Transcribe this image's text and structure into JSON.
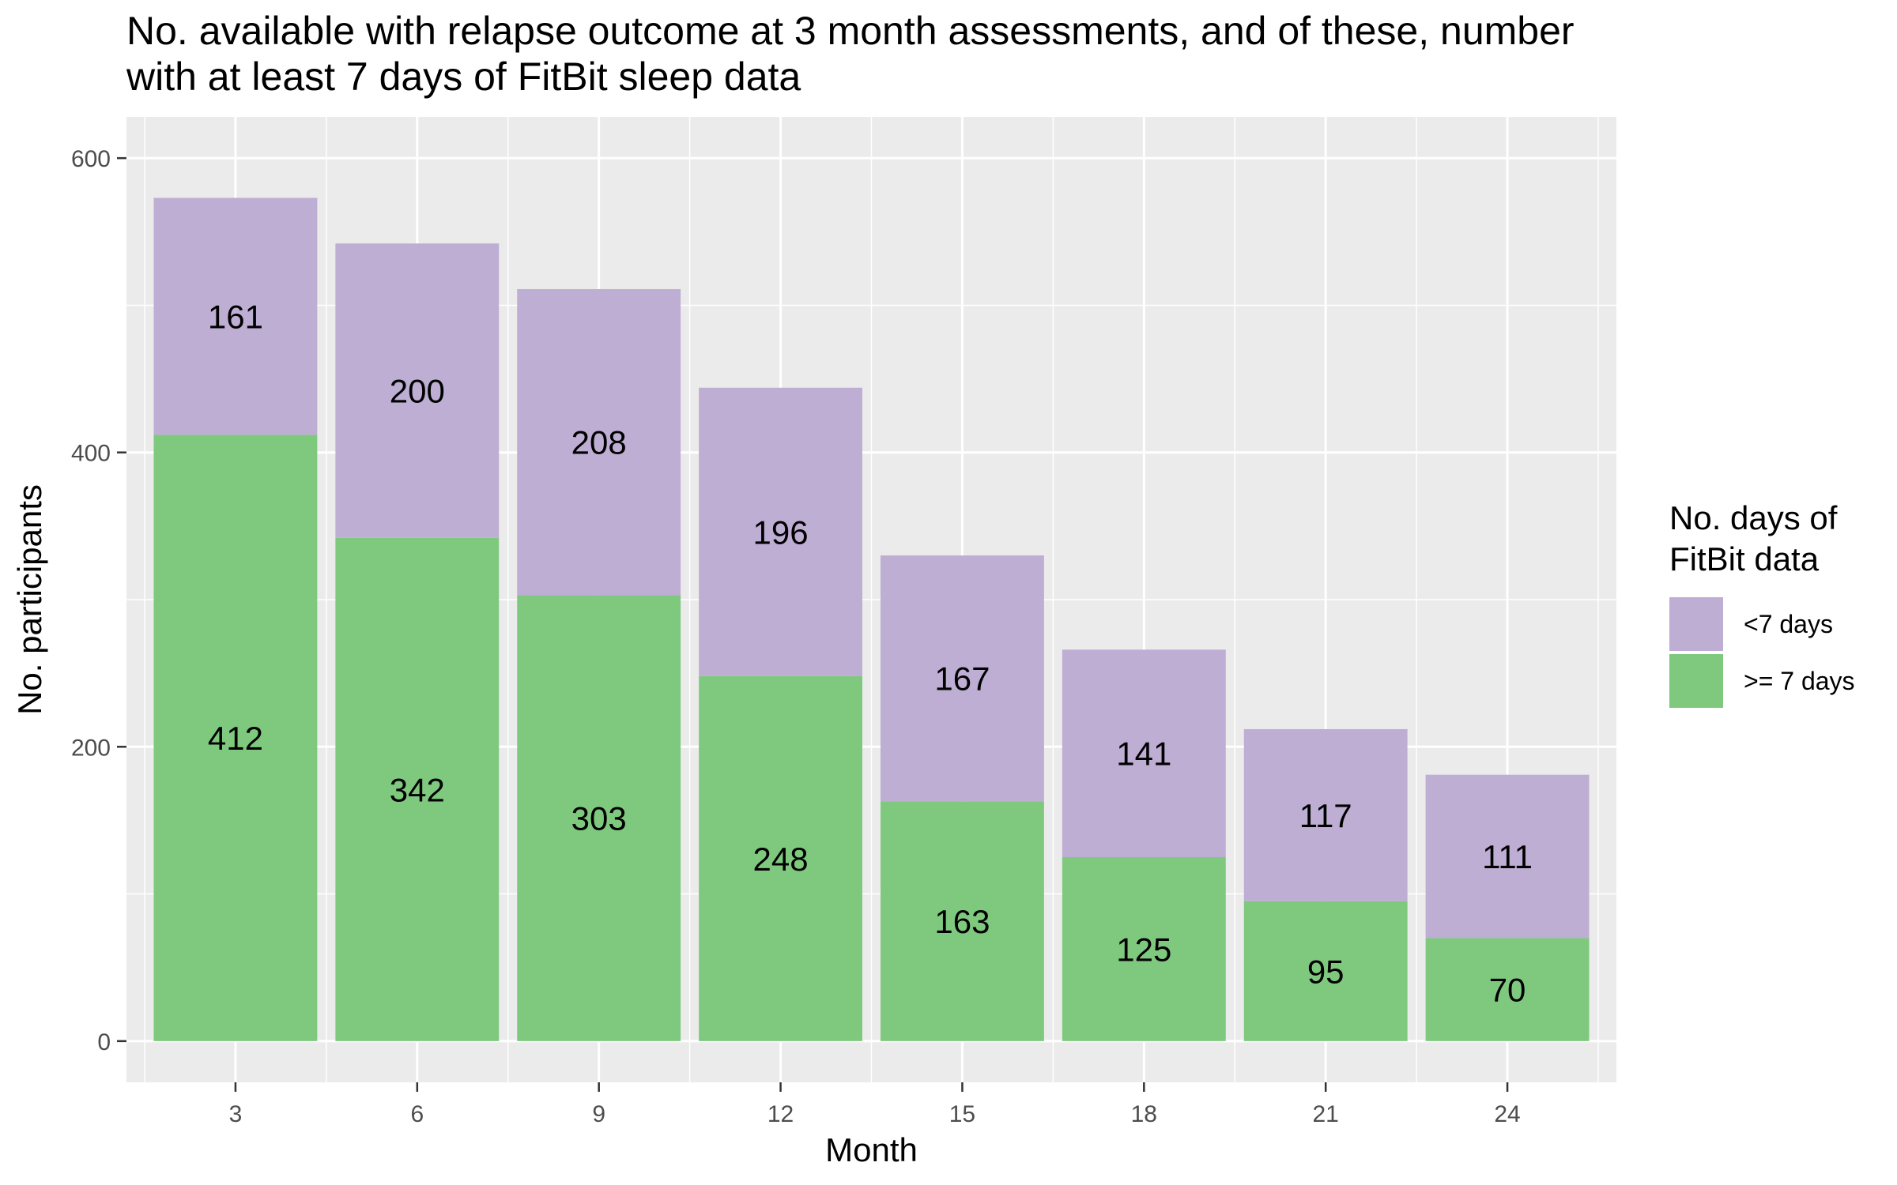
{
  "chart_data": {
    "type": "bar",
    "stacked": true,
    "title": "No. available with relapse outcome at 3 month assessments, and of these, number with at least 7 days of FitBit sleep data",
    "xlabel": "Month",
    "ylabel": "No. participants",
    "categories": [
      "3",
      "6",
      "9",
      "12",
      "15",
      "18",
      "21",
      "24"
    ],
    "series": [
      {
        "name": ">= 7 days",
        "color": "#7fc97f",
        "values": [
          412,
          342,
          303,
          248,
          163,
          125,
          95,
          70
        ]
      },
      {
        "name": "<7 days",
        "color": "#beaed4",
        "values": [
          161,
          200,
          208,
          196,
          167,
          141,
          117,
          111
        ]
      }
    ],
    "ylim": [
      -28,
      600
    ],
    "yticks": [
      0,
      200,
      400,
      600
    ],
    "grid": true,
    "legend": {
      "title": "No. days of FitBit data",
      "position": "right",
      "entries": [
        {
          "label": "<7 days",
          "color": "#beaed4"
        },
        {
          "label": ">= 7 days",
          "color": "#7fc97f"
        }
      ]
    }
  }
}
